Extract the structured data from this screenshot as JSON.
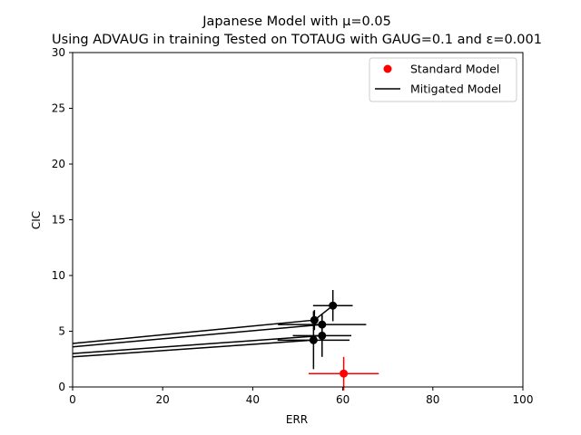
{
  "chart_data": {
    "type": "scatter",
    "title": "Japanese Model with μ=0.05",
    "subtitle": "Using ADVAUG in training Tested on TOTAUG with GAUG=0.1 and ε=0.001",
    "xlabel": "ERR",
    "ylabel": "CIC",
    "xlim": [
      0,
      100
    ],
    "ylim": [
      0,
      30
    ],
    "xticks": [
      0,
      20,
      40,
      60,
      80,
      100
    ],
    "yticks": [
      0,
      5,
      10,
      15,
      20,
      25,
      30
    ],
    "grid": false,
    "legend_position": "top-right",
    "legend": [
      {
        "label": "Standard Model",
        "marker": "dot",
        "color": "#ff0000"
      },
      {
        "label": "Mitigated Model",
        "marker": "line",
        "color": "#000000"
      }
    ],
    "series": [
      {
        "name": "Standard Model",
        "color": "#ff0000",
        "points": [
          {
            "x": 60.2,
            "y": 1.2,
            "xerr": 7.8,
            "yerr": 1.5
          }
        ]
      },
      {
        "name": "Mitigated Model",
        "color": "#000000",
        "points": [
          {
            "x": 57.8,
            "y": 7.3,
            "xerr": 4.4,
            "yerr": 1.4
          },
          {
            "x": 53.7,
            "y": 6.0,
            "xerr": 0,
            "yerr": 0.9
          },
          {
            "x": 55.4,
            "y": 5.6,
            "xerr": 9.8,
            "yerr": 0.9
          },
          {
            "x": 55.4,
            "y": 4.6,
            "xerr": 6.5,
            "yerr": 1.9
          },
          {
            "x": 53.5,
            "y": 4.2,
            "xerr": 8.0,
            "yerr": 2.6
          }
        ],
        "lines": [
          [
            {
              "x": 0,
              "y": 3.9
            },
            {
              "x": 53.7,
              "y": 6.0
            },
            {
              "x": 57.8,
              "y": 7.3
            }
          ],
          [
            {
              "x": 0,
              "y": 3.6
            },
            {
              "x": 55.4,
              "y": 5.6
            }
          ],
          [
            {
              "x": 0,
              "y": 3.0
            },
            {
              "x": 55.4,
              "y": 4.6
            }
          ],
          [
            {
              "x": 0,
              "y": 2.7
            },
            {
              "x": 53.5,
              "y": 4.2
            }
          ]
        ]
      }
    ]
  }
}
